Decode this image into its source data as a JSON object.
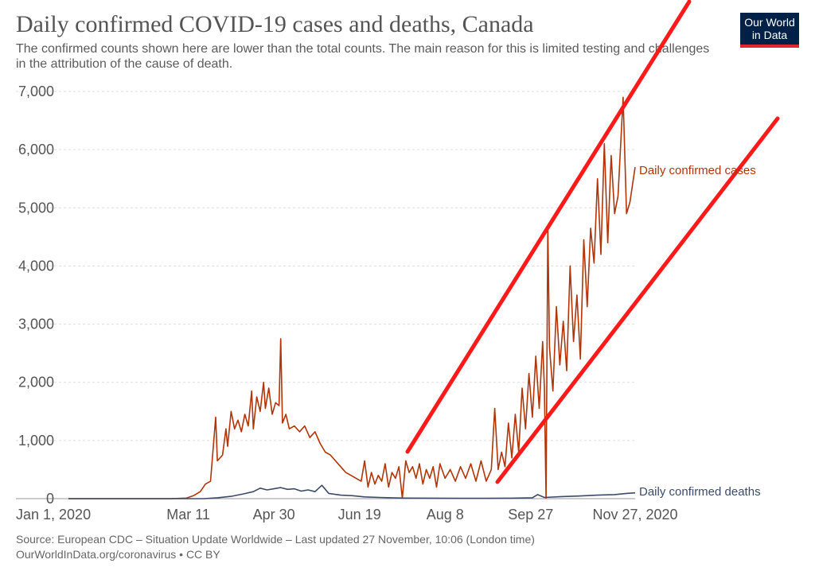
{
  "header": {
    "title": "Daily confirmed COVID-19 cases and deaths, Canada",
    "subtitle": "The confirmed counts shown here are lower than the total counts. The main reason for this is limited testing and challenges in the attribution of the cause of death."
  },
  "logo": {
    "line1": "Our World",
    "line2": "in Data"
  },
  "footer": {
    "source": "Source: European CDC – Situation Update Worldwide – Last updated 27 November, 10:06 (London time)",
    "license": "OurWorldInData.org/coronavirus • CC BY"
  },
  "colors": {
    "cases": "#b13507",
    "deaths": "#3b4b6a",
    "annotation": "#ff1a1a",
    "grid": "#dddddd",
    "text": "#555555",
    "brand": "#002147"
  },
  "chart_data": {
    "type": "line",
    "xlabel": "",
    "ylabel": "",
    "x_ticks": [
      "Jan 1, 2020",
      "Mar 11",
      "Apr 30",
      "Jun 19",
      "Aug 8",
      "Sep 27",
      "Nov 27, 2020"
    ],
    "y_ticks": [
      "0",
      "1,000",
      "2,000",
      "3,000",
      "4,000",
      "5,000",
      "6,000",
      "7,000"
    ],
    "ylim": [
      0,
      7000
    ],
    "xlim": [
      "2020-01-01",
      "2020-11-27"
    ],
    "grid": true,
    "series": [
      {
        "name": "Daily confirmed cases",
        "color": "#b13507",
        "points": [
          [
            "2020-01-01",
            0
          ],
          [
            "2020-03-01",
            0
          ],
          [
            "2020-03-10",
            10
          ],
          [
            "2020-03-14",
            50
          ],
          [
            "2020-03-18",
            120
          ],
          [
            "2020-03-21",
            250
          ],
          [
            "2020-03-24",
            300
          ],
          [
            "2020-03-27",
            1400
          ],
          [
            "2020-03-28",
            650
          ],
          [
            "2020-03-31",
            750
          ],
          [
            "2020-04-02",
            1200
          ],
          [
            "2020-04-03",
            900
          ],
          [
            "2020-04-05",
            1500
          ],
          [
            "2020-04-07",
            1200
          ],
          [
            "2020-04-09",
            1350
          ],
          [
            "2020-04-11",
            1150
          ],
          [
            "2020-04-13",
            1450
          ],
          [
            "2020-04-15",
            1250
          ],
          [
            "2020-04-17",
            1850
          ],
          [
            "2020-04-18",
            1200
          ],
          [
            "2020-04-20",
            1750
          ],
          [
            "2020-04-22",
            1500
          ],
          [
            "2020-04-24",
            2000
          ],
          [
            "2020-04-25",
            1550
          ],
          [
            "2020-04-27",
            1900
          ],
          [
            "2020-04-29",
            1450
          ],
          [
            "2020-05-01",
            1650
          ],
          [
            "2020-05-03",
            1600
          ],
          [
            "2020-05-04",
            2750
          ],
          [
            "2020-05-05",
            1300
          ],
          [
            "2020-05-07",
            1450
          ],
          [
            "2020-05-09",
            1200
          ],
          [
            "2020-05-12",
            1250
          ],
          [
            "2020-05-15",
            1150
          ],
          [
            "2020-05-18",
            1250
          ],
          [
            "2020-05-21",
            1050
          ],
          [
            "2020-05-24",
            1150
          ],
          [
            "2020-05-27",
            950
          ],
          [
            "2020-05-30",
            800
          ],
          [
            "2020-06-02",
            750
          ],
          [
            "2020-06-05",
            650
          ],
          [
            "2020-06-08",
            550
          ],
          [
            "2020-06-11",
            450
          ],
          [
            "2020-06-14",
            400
          ],
          [
            "2020-06-17",
            350
          ],
          [
            "2020-06-20",
            300
          ],
          [
            "2020-06-22",
            650
          ],
          [
            "2020-06-24",
            200
          ],
          [
            "2020-06-26",
            450
          ],
          [
            "2020-06-28",
            250
          ],
          [
            "2020-06-30",
            400
          ],
          [
            "2020-07-02",
            300
          ],
          [
            "2020-07-04",
            600
          ],
          [
            "2020-07-06",
            200
          ],
          [
            "2020-07-08",
            450
          ],
          [
            "2020-07-10",
            350
          ],
          [
            "2020-07-12",
            550
          ],
          [
            "2020-07-14",
            10
          ],
          [
            "2020-07-16",
            650
          ],
          [
            "2020-07-18",
            450
          ],
          [
            "2020-07-20",
            550
          ],
          [
            "2020-07-22",
            350
          ],
          [
            "2020-07-24",
            600
          ],
          [
            "2020-07-26",
            250
          ],
          [
            "2020-07-28",
            500
          ],
          [
            "2020-07-30",
            350
          ],
          [
            "2020-08-01",
            550
          ],
          [
            "2020-08-03",
            200
          ],
          [
            "2020-08-05",
            600
          ],
          [
            "2020-08-08",
            350
          ],
          [
            "2020-08-11",
            500
          ],
          [
            "2020-08-14",
            300
          ],
          [
            "2020-08-17",
            550
          ],
          [
            "2020-08-20",
            350
          ],
          [
            "2020-08-23",
            600
          ],
          [
            "2020-08-26",
            300
          ],
          [
            "2020-08-29",
            650
          ],
          [
            "2020-09-01",
            300
          ],
          [
            "2020-09-04",
            500
          ],
          [
            "2020-09-06",
            1550
          ],
          [
            "2020-09-08",
            500
          ],
          [
            "2020-09-10",
            800
          ],
          [
            "2020-09-12",
            550
          ],
          [
            "2020-09-14",
            1300
          ],
          [
            "2020-09-16",
            700
          ],
          [
            "2020-09-18",
            1450
          ],
          [
            "2020-09-20",
            800
          ],
          [
            "2020-09-22",
            1900
          ],
          [
            "2020-09-24",
            1200
          ],
          [
            "2020-09-26",
            2150
          ],
          [
            "2020-09-28",
            1400
          ],
          [
            "2020-09-30",
            2450
          ],
          [
            "2020-10-02",
            1550
          ],
          [
            "2020-10-04",
            2700
          ],
          [
            "2020-10-05",
            1900
          ],
          [
            "2020-10-06",
            10
          ],
          [
            "2020-10-07",
            4700
          ],
          [
            "2020-10-08",
            2600
          ],
          [
            "2020-10-10",
            1850
          ],
          [
            "2020-10-12",
            3300
          ],
          [
            "2020-10-14",
            2300
          ],
          [
            "2020-10-16",
            3050
          ],
          [
            "2020-10-18",
            2200
          ],
          [
            "2020-10-20",
            4000
          ],
          [
            "2020-10-22",
            2700
          ],
          [
            "2020-10-24",
            3500
          ],
          [
            "2020-10-26",
            2400
          ],
          [
            "2020-10-28",
            4450
          ],
          [
            "2020-10-30",
            3300
          ],
          [
            "2020-11-01",
            4650
          ],
          [
            "2020-11-03",
            4050
          ],
          [
            "2020-11-05",
            5500
          ],
          [
            "2020-11-07",
            4200
          ],
          [
            "2020-11-09",
            6100
          ],
          [
            "2020-11-11",
            4400
          ],
          [
            "2020-11-13",
            5900
          ],
          [
            "2020-11-15",
            4900
          ],
          [
            "2020-11-17",
            5200
          ],
          [
            "2020-11-20",
            6900
          ],
          [
            "2020-11-22",
            4900
          ],
          [
            "2020-11-24",
            5100
          ],
          [
            "2020-11-27",
            5700
          ]
        ]
      },
      {
        "name": "Daily confirmed deaths",
        "color": "#3b4b6a",
        "points": [
          [
            "2020-01-01",
            0
          ],
          [
            "2020-03-20",
            0
          ],
          [
            "2020-03-28",
            15
          ],
          [
            "2020-04-05",
            40
          ],
          [
            "2020-04-12",
            80
          ],
          [
            "2020-04-18",
            120
          ],
          [
            "2020-04-22",
            180
          ],
          [
            "2020-04-26",
            150
          ],
          [
            "2020-04-30",
            170
          ],
          [
            "2020-05-04",
            190
          ],
          [
            "2020-05-08",
            160
          ],
          [
            "2020-05-12",
            170
          ],
          [
            "2020-05-16",
            130
          ],
          [
            "2020-05-20",
            150
          ],
          [
            "2020-05-24",
            120
          ],
          [
            "2020-05-28",
            230
          ],
          [
            "2020-06-01",
            90
          ],
          [
            "2020-06-08",
            60
          ],
          [
            "2020-06-15",
            50
          ],
          [
            "2020-06-22",
            30
          ],
          [
            "2020-07-01",
            20
          ],
          [
            "2020-07-15",
            10
          ],
          [
            "2020-08-01",
            8
          ],
          [
            "2020-08-15",
            6
          ],
          [
            "2020-09-01",
            5
          ],
          [
            "2020-09-15",
            8
          ],
          [
            "2020-09-28",
            15
          ],
          [
            "2020-10-01",
            70
          ],
          [
            "2020-10-05",
            20
          ],
          [
            "2020-10-15",
            35
          ],
          [
            "2020-10-25",
            45
          ],
          [
            "2020-11-05",
            60
          ],
          [
            "2020-11-15",
            70
          ],
          [
            "2020-11-22",
            90
          ],
          [
            "2020-11-27",
            100
          ]
        ]
      }
    ]
  }
}
